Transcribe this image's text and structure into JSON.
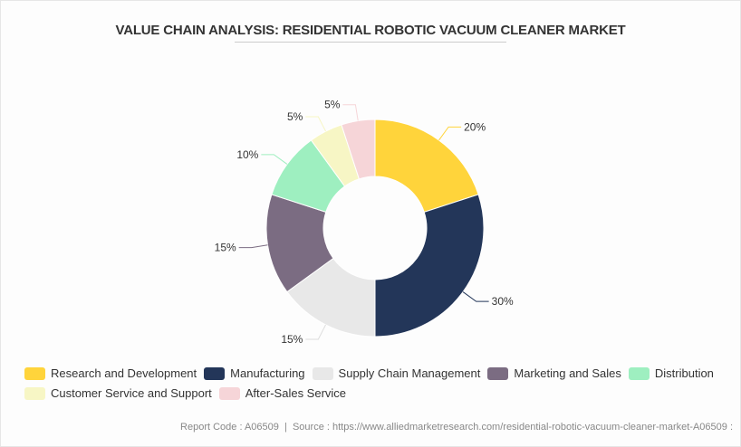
{
  "chart_data": {
    "type": "pie",
    "donut": true,
    "title": "VALUE CHAIN ANALYSIS: RESIDENTIAL ROBOTIC VACUUM CLEANER MARKET",
    "categories": [
      "Research and Development",
      "Manufacturing",
      "Supply Chain Management",
      "Marketing and Sales",
      "Distribution",
      "Customer Service and Support",
      "After-Sales Service"
    ],
    "values": [
      20,
      30,
      15,
      15,
      10,
      5,
      5
    ],
    "labels": [
      "20%",
      "30%",
      "15%",
      "15%",
      "10%",
      "5%",
      "5%"
    ],
    "colors": [
      "#FFD43B",
      "#233659",
      "#E8E8E8",
      "#7B6C82",
      "#9EEFC0",
      "#F7F6C5",
      "#F6D5D8"
    ],
    "legend_position": "bottom"
  },
  "footer": {
    "source": "Report Code : A06509  |  Source : https://www.alliedmarketresearch.com/residential-robotic-vacuum-cleaner-market-A06509 :"
  }
}
